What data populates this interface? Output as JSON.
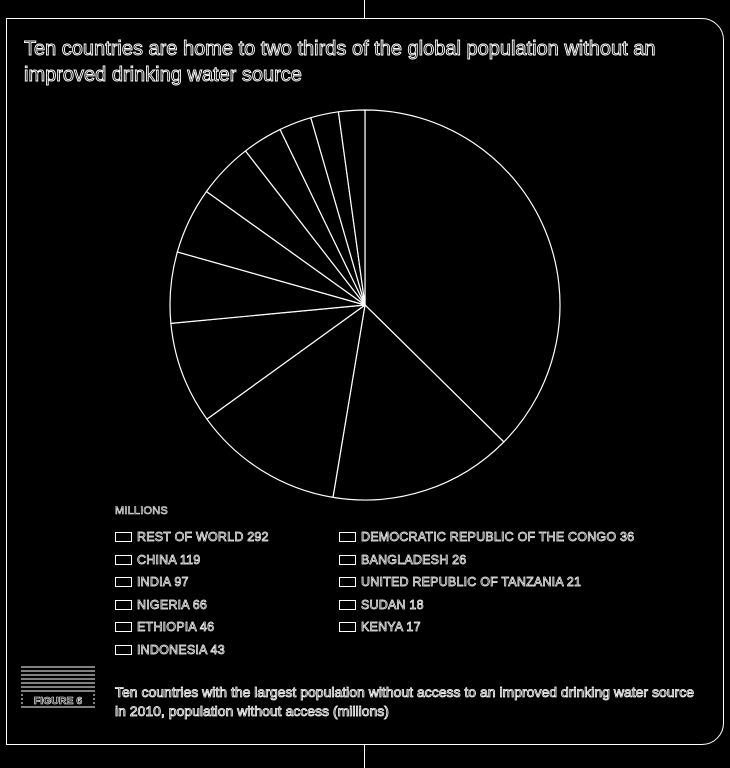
{
  "title": "Ten countries are home to two thirds of the global population without an improved drinking water source",
  "legend_header": "MILLIONS",
  "figure_label": "FIGURE 6",
  "caption": "Ten countries with the largest population without access to an improved drinking water source in 2010, population without access (millions)",
  "colors": {
    "background": "#000000",
    "stroke": "#ffffff"
  },
  "legend": {
    "left": [
      "REST OF WORLD 292",
      "CHINA 119",
      "INDIA 97",
      "NIGERIA 66",
      "ETHIOPIA 46",
      "INDONESIA 43"
    ],
    "right": [
      "DEMOCRATIC REPUBLIC OF THE CONGO 36",
      "BANGLADESH 26",
      "UNITED REPUBLIC OF TANZANIA 21",
      "SUDAN 18",
      "KENYA 17"
    ]
  },
  "chart_data": {
    "type": "pie",
    "unit": "millions",
    "categories": [
      "REST OF WORLD",
      "CHINA",
      "INDIA",
      "NIGERIA",
      "ETHIOPIA",
      "INDONESIA",
      "DEMOCRATIC REPUBLIC OF THE CONGO",
      "BANGLADESH",
      "UNITED REPUBLIC OF TANZANIA",
      "SUDAN",
      "KENYA"
    ],
    "values": [
      292,
      119,
      97,
      66,
      46,
      43,
      36,
      26,
      21,
      18,
      17
    ],
    "start_angle": "12 o'clock",
    "direction": "clockwise"
  }
}
